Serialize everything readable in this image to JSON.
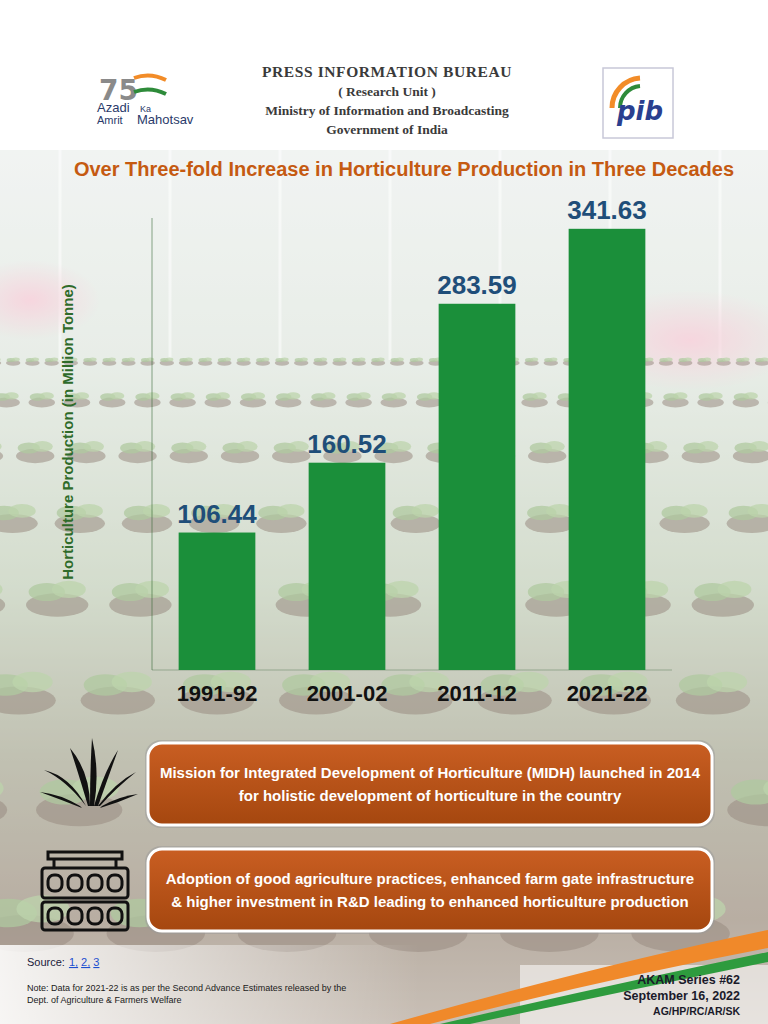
{
  "header": {
    "org": "PRESS INFORMATION BUREAU",
    "unit": "( Research Unit )",
    "ministry": "Ministry of Information and Broadcasting",
    "government": "Government of India"
  },
  "logo_left": {
    "number": "75",
    "words": [
      "Azadi",
      "Ka",
      "Amrit",
      "Mahotsav"
    ]
  },
  "logo_right": {
    "text": "pib"
  },
  "chart_data": {
    "type": "bar",
    "title": "Over Three-fold Increase in Horticulture Production in Three Decades",
    "y_label": "Horticulture Production (in Million Tonne)",
    "categories": [
      "1991-92",
      "2001-02",
      "2011-12",
      "2021-22"
    ],
    "values": [
      106.44,
      160.52,
      283.59,
      341.63
    ],
    "color": "#1b8f3a",
    "ylim": [
      0,
      350
    ],
    "yticks": [],
    "grid": false,
    "data_labels": true,
    "tick_labels": "x"
  },
  "highlights": [
    "Mission for Integrated Development of Horticulture (MIDH) launched in 2014 for holistic development of horticulture in the country",
    "Adoption of good agriculture practices, enhanced farm gate infrastructure & higher investment in R&D leading to enhanced horticulture production"
  ],
  "footer": {
    "source_label": "Source:",
    "source_links": [
      "1,",
      "2,",
      "3"
    ],
    "note": "Note: Data for 2021-22 is as per the Second Advance Estimates released by the Dept. of Agriculture & Farmers Welfare",
    "series": "AKAM Series #62",
    "date": "September 16, 2022",
    "initials": "AG/HP/RC/AR/SK"
  }
}
